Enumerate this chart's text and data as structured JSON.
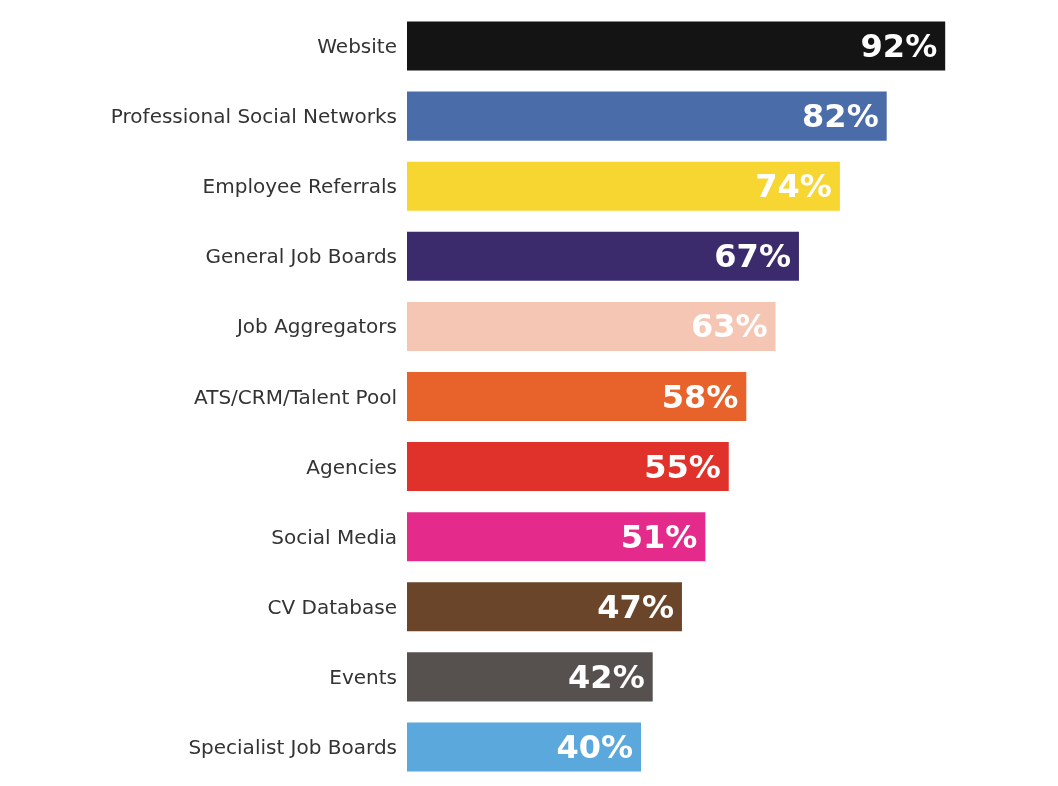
{
  "chart_data": {
    "type": "bar",
    "orientation": "horizontal",
    "tick_labels": "y",
    "categories": [
      "Website",
      "Professional Social Networks",
      "Employee Referrals",
      "General Job Boards",
      "Job Aggregators",
      "ATS/CRM/Talent Pool",
      "Agencies",
      "Social Media",
      "CV Database",
      "Events",
      "Specialist Job Boards"
    ],
    "values": [
      92,
      82,
      74,
      67,
      63,
      58,
      55,
      51,
      47,
      42,
      40
    ],
    "value_labels": [
      "92%",
      "82%",
      "74%",
      "67%",
      "63%",
      "58%",
      "55%",
      "51%",
      "47%",
      "42%",
      "40%"
    ],
    "colors": [
      "#141414",
      "#4a6ca8",
      "#f7d631",
      "#3b2a6c",
      "#f6c6b5",
      "#e8632c",
      "#e0312a",
      "#e42a8a",
      "#6b4529",
      "#56504f",
      "#5aa8dc"
    ]
  }
}
